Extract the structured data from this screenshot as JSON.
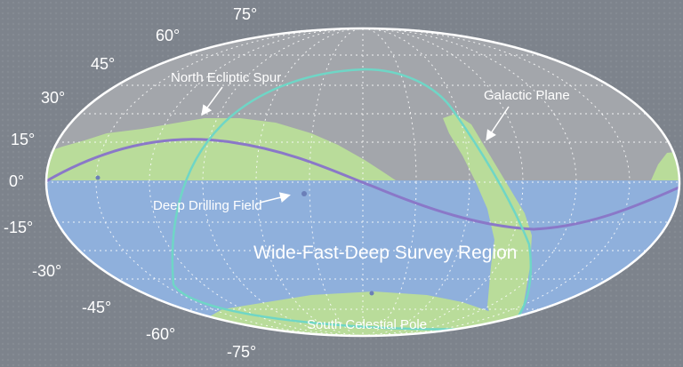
{
  "latitude_labels": [
    "75°",
    "60°",
    "45°",
    "30°",
    "15°",
    "0°",
    "-15°",
    "-30°",
    "-45°",
    "-60°",
    "-75°"
  ],
  "annotations": {
    "north_ecliptic_spur": "North Ecliptic Spur",
    "galactic_plane": "Galactic Plane",
    "deep_drilling_field": "Deep Drilling Field",
    "wide_fast_deep": "Wide-Fast-Deep Survey Region",
    "south_celestial_pole": "South Celestial Pole"
  },
  "colors": {
    "background": "#7d838c",
    "sky_upper": "#a3a6ab",
    "wfd_region": "#8fb0dc",
    "green_regions": "#b9dc9a",
    "ecliptic_line": "#8a78c8",
    "galactic_line": "#6fd6c6",
    "grid": "#ffffff"
  }
}
